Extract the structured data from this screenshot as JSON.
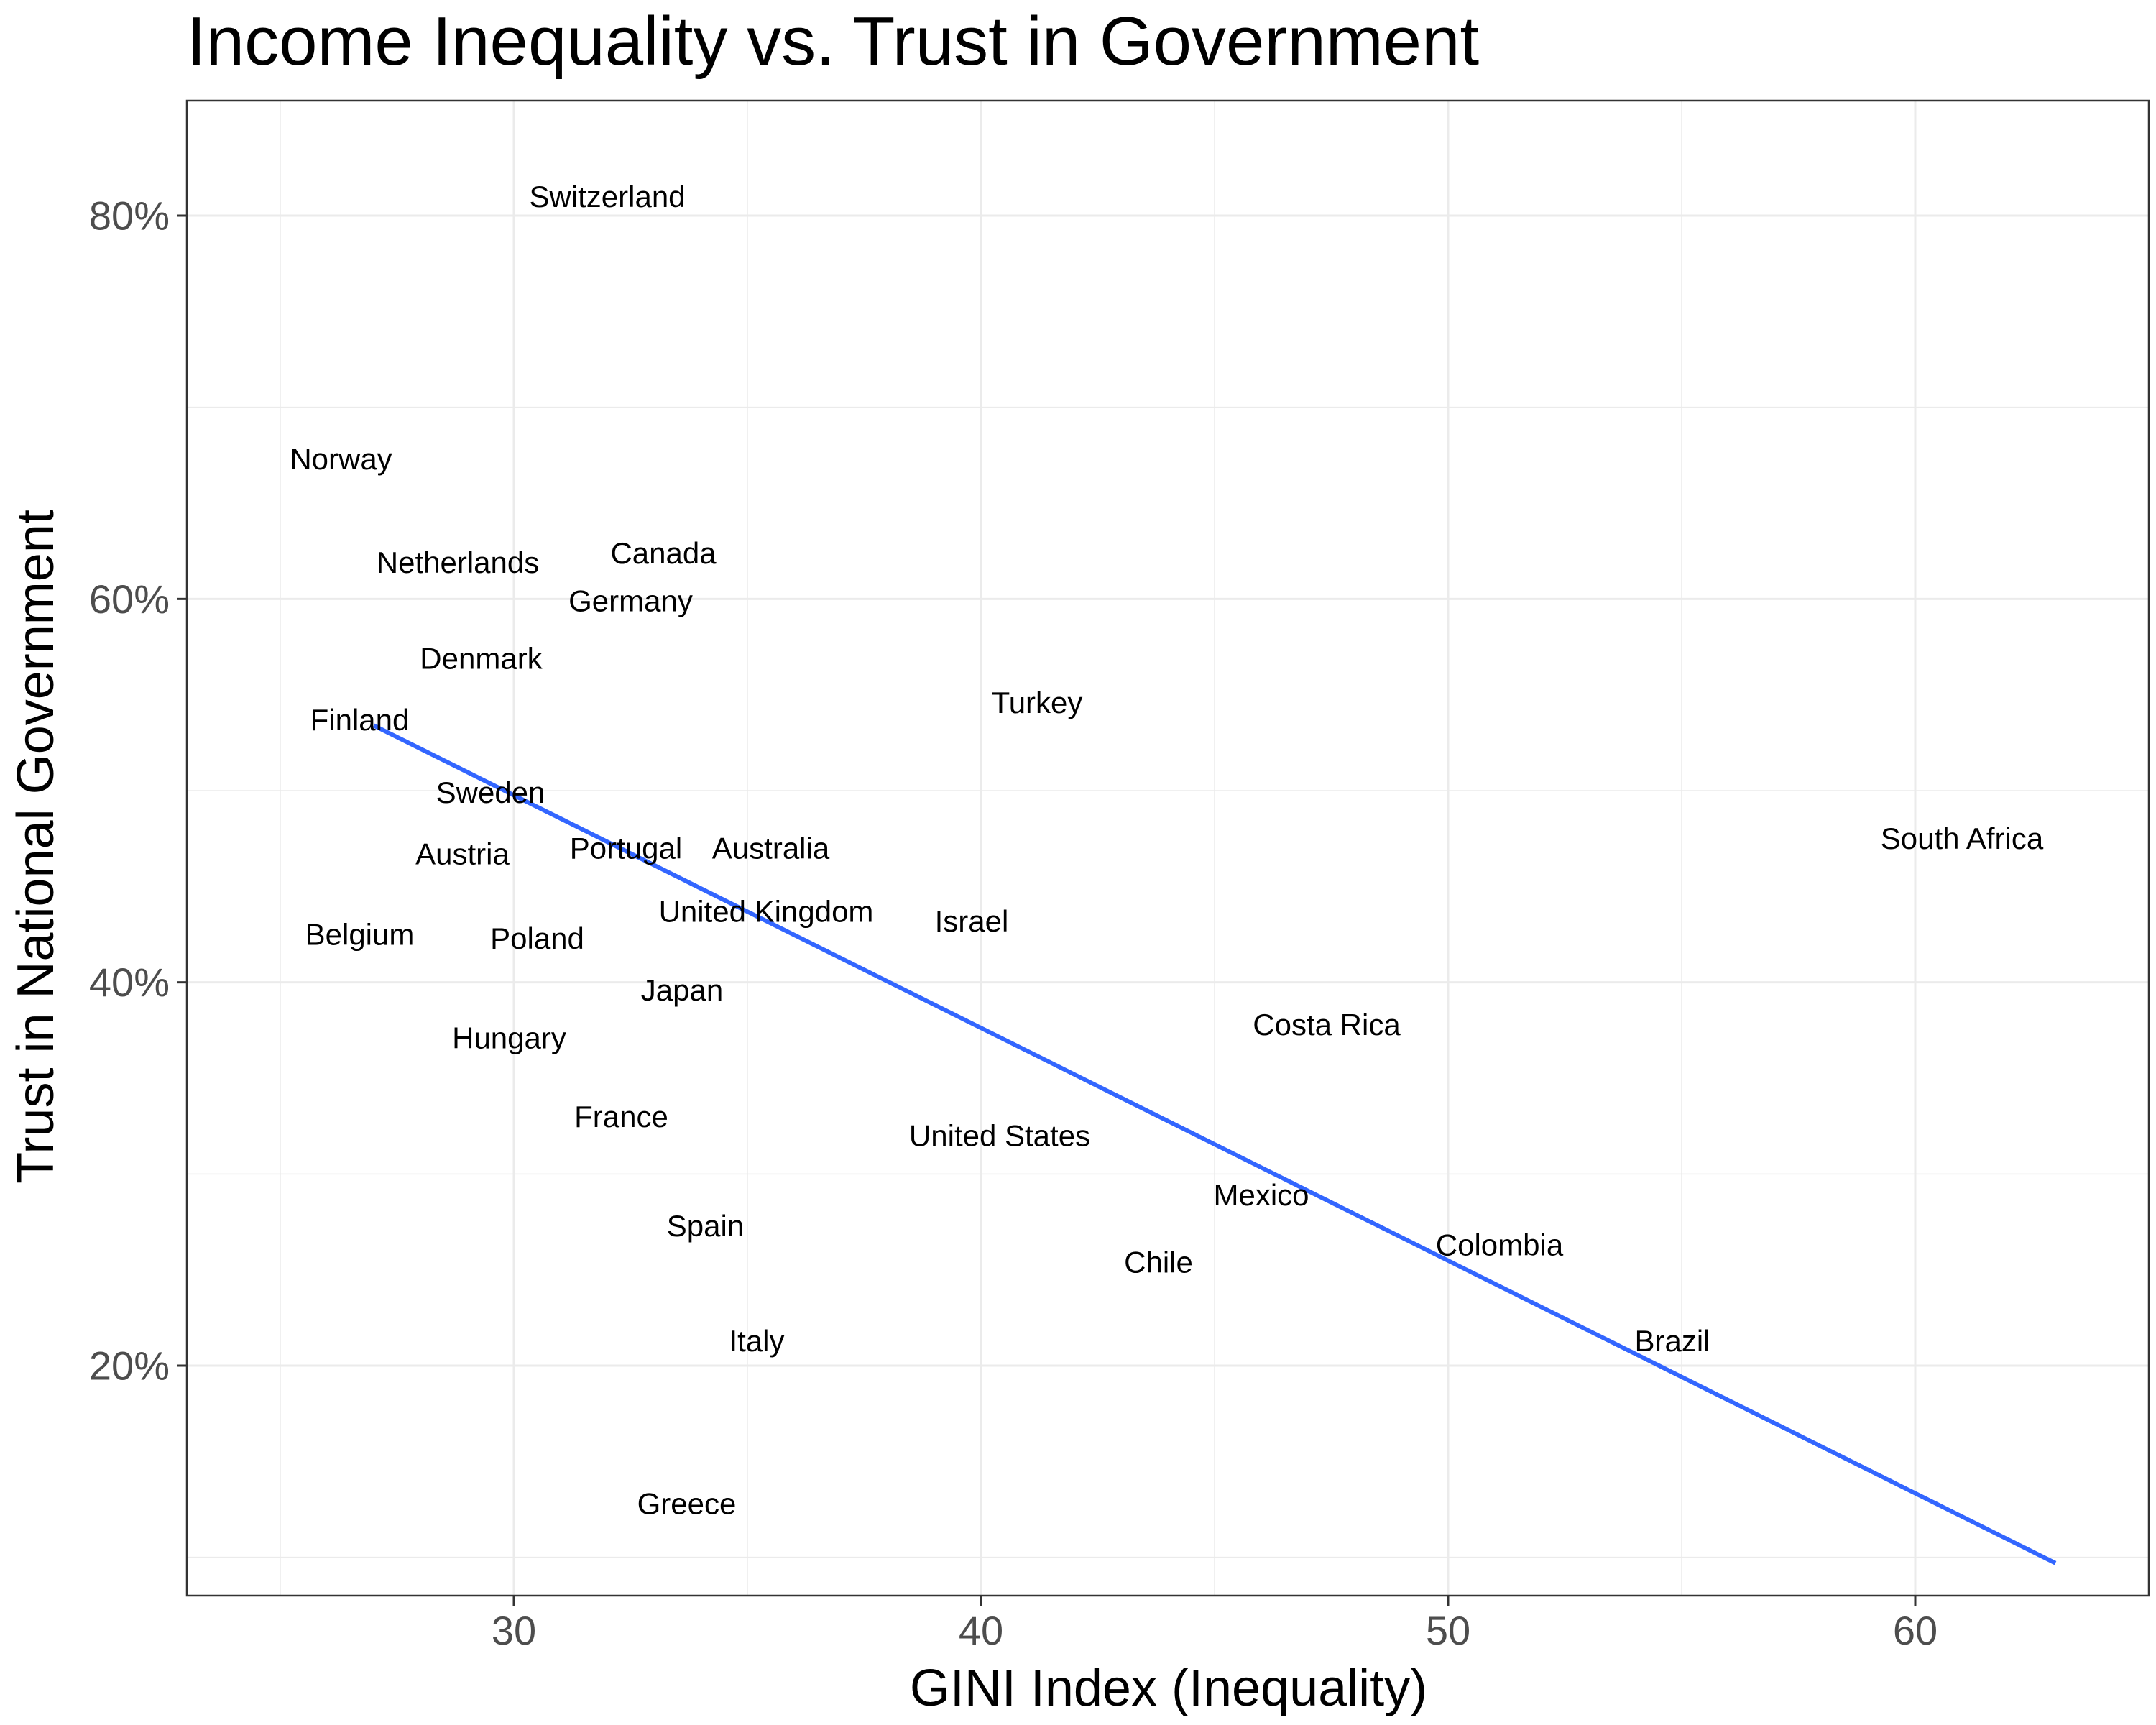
{
  "chart_data": {
    "type": "scatter",
    "title": "Income Inequality vs. Trust in Government",
    "xlabel": "GINI Index (Inequality)",
    "ylabel": "Trust in National Government",
    "xlim": [
      23,
      65
    ],
    "ylim": [
      8,
      86
    ],
    "x_ticks": [
      30,
      40,
      50,
      60
    ],
    "y_ticks": [
      20,
      40,
      60,
      80
    ],
    "y_tick_labels": [
      "20%",
      "40%",
      "60%",
      "80%"
    ],
    "x_minor": [
      25,
      35,
      45,
      55
    ],
    "y_minor": [
      10,
      30,
      50,
      70
    ],
    "grid": true,
    "points": [
      {
        "label": "Switzerland",
        "x": 32.0,
        "y": 81.0
      },
      {
        "label": "Norway",
        "x": 26.3,
        "y": 67.3
      },
      {
        "label": "Netherlands",
        "x": 28.8,
        "y": 61.9
      },
      {
        "label": "Canada",
        "x": 33.2,
        "y": 62.4
      },
      {
        "label": "Germany",
        "x": 32.5,
        "y": 59.9
      },
      {
        "label": "Denmark",
        "x": 29.3,
        "y": 56.9
      },
      {
        "label": "Finland",
        "x": 26.7,
        "y": 53.7
      },
      {
        "label": "Turkey",
        "x": 41.2,
        "y": 54.6
      },
      {
        "label": "Sweden",
        "x": 29.5,
        "y": 49.9
      },
      {
        "label": "Austria",
        "x": 28.9,
        "y": 46.7
      },
      {
        "label": "Portugal",
        "x": 32.4,
        "y": 47.0
      },
      {
        "label": "Australia",
        "x": 35.5,
        "y": 47.0
      },
      {
        "label": "South Africa",
        "x": 61.0,
        "y": 47.5
      },
      {
        "label": "United Kingdom",
        "x": 35.4,
        "y": 43.7
      },
      {
        "label": "Israel",
        "x": 39.8,
        "y": 43.2
      },
      {
        "label": "Belgium",
        "x": 26.7,
        "y": 42.5
      },
      {
        "label": "Poland",
        "x": 30.5,
        "y": 42.3
      },
      {
        "label": "Japan",
        "x": 33.6,
        "y": 39.6
      },
      {
        "label": "Costa Rica",
        "x": 47.4,
        "y": 37.8
      },
      {
        "label": "Hungary",
        "x": 29.9,
        "y": 37.1
      },
      {
        "label": "France",
        "x": 32.3,
        "y": 33.0
      },
      {
        "label": "United States",
        "x": 40.4,
        "y": 32.0
      },
      {
        "label": "Mexico",
        "x": 46.0,
        "y": 28.9
      },
      {
        "label": "Spain",
        "x": 34.1,
        "y": 27.3
      },
      {
        "label": "Chile",
        "x": 43.8,
        "y": 25.4
      },
      {
        "label": "Colombia",
        "x": 51.1,
        "y": 26.3
      },
      {
        "label": "Italy",
        "x": 35.2,
        "y": 21.3
      },
      {
        "label": "Brazil",
        "x": 54.8,
        "y": 21.3
      },
      {
        "label": "Greece",
        "x": 33.7,
        "y": 12.8
      }
    ],
    "trend_line": {
      "x": [
        27.0,
        63.0
      ],
      "y": [
        53.4,
        9.7
      ]
    },
    "trend_color": "#3366ff",
    "grid_color": "#ebebeb",
    "border_color": "#333333"
  }
}
